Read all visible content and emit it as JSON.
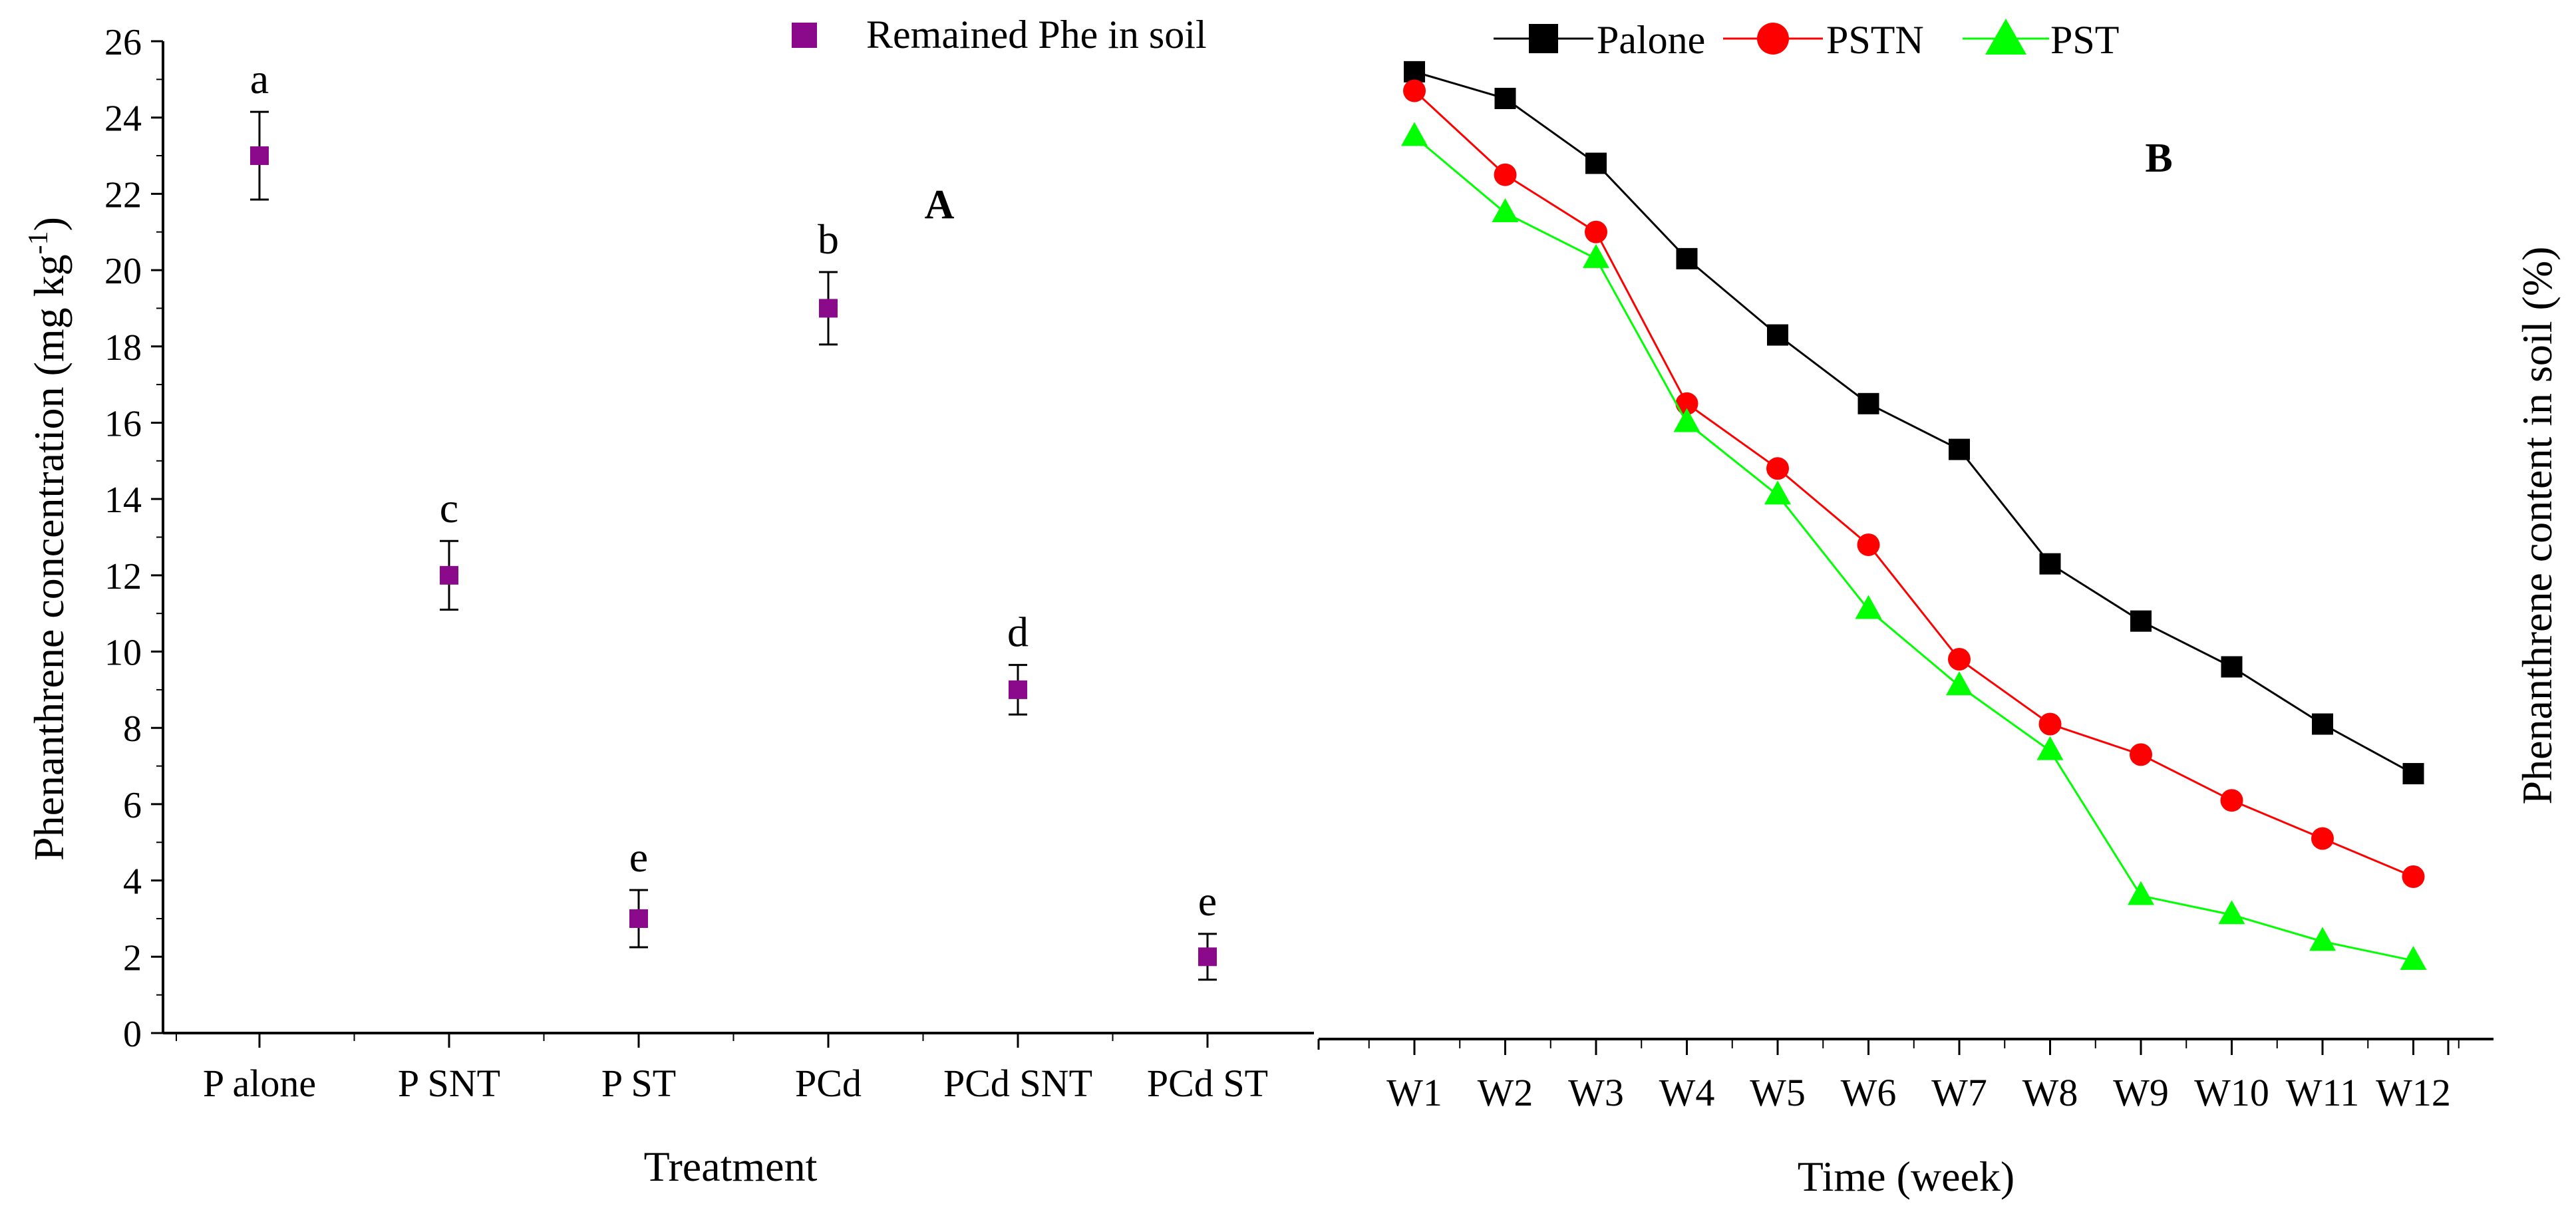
{
  "chart_data": [
    {
      "type": "scatter",
      "panel_label": "A",
      "title": "",
      "xlabel": "Treatment",
      "ylabel_main": "Phenanthrene concentration (mg kg",
      "ylabel_sup": "-1",
      "ylabel_close": ")",
      "ylim": [
        0,
        26
      ],
      "yticks": [
        0,
        2,
        4,
        6,
        8,
        10,
        12,
        14,
        16,
        18,
        20,
        22,
        24,
        26
      ],
      "categories": [
        "P alone",
        "P SNT",
        "P ST",
        "PCd",
        "PCd SNT",
        "PCd ST"
      ],
      "series": [
        {
          "name": "Remained Phe in soil",
          "color": "#8B0A8B",
          "marker": "square",
          "values": [
            23.0,
            12.0,
            3.0,
            19.0,
            9.0,
            2.0
          ],
          "errors": [
            1.15,
            0.9,
            0.75,
            0.95,
            0.65,
            0.6
          ],
          "letters": [
            "a",
            "c",
            "e",
            "b",
            "d",
            "e"
          ]
        }
      ],
      "legend": "top-center"
    },
    {
      "type": "line",
      "panel_label": "B",
      "title": "",
      "xlabel": "Time (week)",
      "ylabel": "Phenanthrene content in soil (%)",
      "categories": [
        "W1",
        "W2",
        "W3",
        "W4",
        "W5",
        "W6",
        "W7",
        "W8",
        "W9",
        "W10",
        "W11",
        "W12"
      ],
      "ylim": [
        0,
        26
      ],
      "series": [
        {
          "name": "Palone",
          "color": "#000000",
          "marker": "square",
          "values": [
            25.2,
            24.5,
            22.8,
            20.3,
            18.3,
            16.5,
            15.3,
            12.3,
            10.8,
            9.6,
            8.1,
            6.8
          ]
        },
        {
          "name": "PSTN",
          "color": "#FF0000",
          "marker": "circle",
          "values": [
            24.7,
            22.5,
            21.0,
            16.5,
            14.8,
            12.8,
            9.8,
            8.1,
            7.3,
            6.1,
            5.1,
            4.1
          ]
        },
        {
          "name": "PST",
          "color": "#00FF00",
          "marker": "triangle",
          "values": [
            23.5,
            21.5,
            20.3,
            16.0,
            14.1,
            11.1,
            9.1,
            7.4,
            3.6,
            3.1,
            2.4,
            1.9
          ]
        }
      ],
      "legend": "top-center"
    }
  ]
}
